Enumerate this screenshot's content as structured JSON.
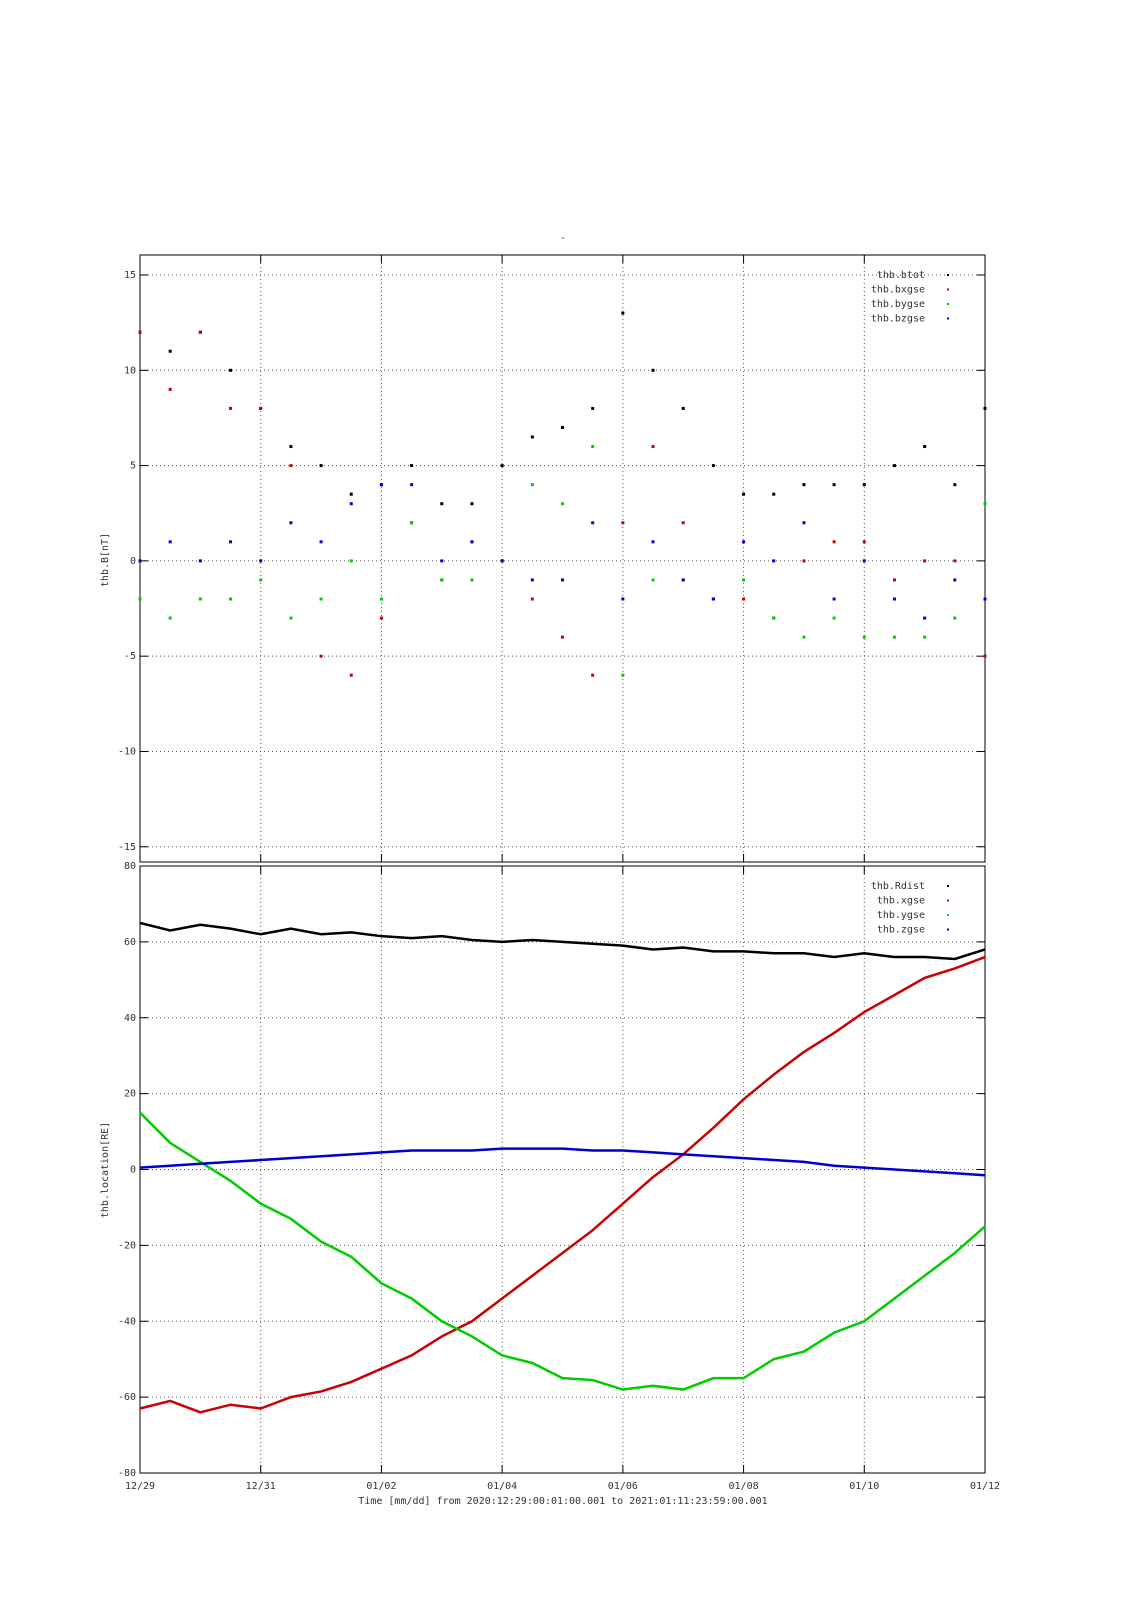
{
  "chart_data": [
    {
      "type": "scatter",
      "title": "-",
      "y_label": "thb.B[nT]",
      "legend": "upper right",
      "grid": true,
      "ylim": [
        -15.8,
        16.05
      ],
      "yticks": [
        15,
        10,
        5,
        0,
        -5,
        -10,
        -15
      ],
      "xlim": [
        0,
        14
      ],
      "x": [
        0,
        0.5,
        1,
        1.5,
        2,
        2.5,
        3,
        3.5,
        4,
        4.5,
        5,
        5.5,
        6,
        6.5,
        7,
        7.5,
        8,
        8.5,
        9,
        9.5,
        10,
        10.5,
        11,
        11.5,
        12,
        12.5,
        13,
        13.5,
        14
      ],
      "series": [
        {
          "name": "thb.btot",
          "color": "#000000",
          "values": [
            12,
            11,
            12,
            10,
            8,
            6,
            5,
            3.5,
            4,
            5,
            3,
            3,
            5,
            6.5,
            7,
            8,
            13,
            10,
            8,
            5,
            3.5,
            3.5,
            4,
            4,
            4,
            5,
            6,
            4,
            8
          ]
        },
        {
          "name": "thb.bxgse",
          "color": "#cc0000",
          "values": [
            12,
            9,
            12,
            8,
            8,
            5,
            -5,
            -6,
            -3,
            2,
            -1,
            1,
            0,
            -2,
            -4,
            -6,
            2,
            6,
            2,
            -2,
            -2,
            -3,
            0,
            1,
            1,
            -1,
            0,
            0,
            -5
          ]
        },
        {
          "name": "thb.bygse",
          "color": "#00cc00",
          "values": [
            -2,
            -3,
            -2,
            -2,
            -1,
            -3,
            -2,
            0,
            -2,
            2,
            -1,
            -1,
            0,
            4,
            3,
            6,
            -6,
            -1,
            -1,
            -2,
            -1,
            -3,
            -4,
            -3,
            -4,
            -4,
            -4,
            -3,
            3
          ]
        },
        {
          "name": "thb.bzgse",
          "color": "#0000cc",
          "values": [
            0,
            1,
            0,
            1,
            0,
            2,
            1,
            3,
            4,
            4,
            0,
            1,
            0,
            -1,
            -1,
            2,
            -2,
            1,
            -1,
            -2,
            1,
            0,
            2,
            -2,
            0,
            -2,
            -3,
            -1,
            -2
          ]
        }
      ]
    },
    {
      "type": "line",
      "y_label": "thb.location[RE]",
      "x_label": "Time [mm/dd]  from 2020:12:29:00:01:00.001  to  2021:01:11:23:59:00.001",
      "legend": "upper right",
      "grid": true,
      "ylim": [
        -80,
        80
      ],
      "yticks": [
        80,
        60,
        40,
        20,
        0,
        -20,
        -40,
        -60,
        -80
      ],
      "xlim": [
        0,
        14
      ],
      "xticks": [
        {
          "value": 0,
          "label": "12/29"
        },
        {
          "value": 2,
          "label": "12/31"
        },
        {
          "value": 4,
          "label": "01/02"
        },
        {
          "value": 6,
          "label": "01/04"
        },
        {
          "value": 8,
          "label": "01/06"
        },
        {
          "value": 10,
          "label": "01/08"
        },
        {
          "value": 12,
          "label": "01/10"
        },
        {
          "value": 14,
          "label": "01/12"
        }
      ],
      "x": [
        0,
        0.5,
        1,
        1.5,
        2,
        2.5,
        3,
        3.5,
        4,
        4.5,
        5,
        5.5,
        6,
        6.5,
        7,
        7.5,
        8,
        8.5,
        9,
        9.5,
        10,
        10.5,
        11,
        11.5,
        12,
        12.5,
        13,
        13.5,
        14
      ],
      "series": [
        {
          "name": "thb.Rdist",
          "color": "#000000",
          "values": [
            65,
            63,
            64.5,
            63.5,
            62,
            63.5,
            62,
            62.5,
            61.5,
            61,
            61.5,
            60.5,
            60,
            60.5,
            60,
            59.5,
            59,
            58,
            58.5,
            57.5,
            57.5,
            57,
            57,
            56,
            57,
            56,
            56,
            55.5,
            58
          ]
        },
        {
          "name": "thb.xgse",
          "color": "#cc0000",
          "values": [
            -63,
            -61,
            -64,
            -62,
            -63,
            -60,
            -58.5,
            -56,
            -52.5,
            -49,
            -44,
            -40,
            -34,
            -28,
            -22,
            -16,
            -9,
            -2,
            4,
            11,
            18.5,
            25,
            31,
            36,
            41.5,
            46,
            50.5,
            53,
            56
          ]
        },
        {
          "name": "thb.ygse",
          "color": "#00cc00",
          "values": [
            15,
            7,
            2,
            -3,
            -9,
            -13,
            -19,
            -23,
            -30,
            -34,
            -40,
            -44,
            -49,
            -51,
            -55,
            -55.5,
            -58,
            -57,
            -58,
            -55,
            -55,
            -50,
            -48,
            -43,
            -40,
            -34,
            -28,
            -22,
            -15
          ]
        },
        {
          "name": "thb.zgse",
          "color": "#0000cc",
          "values": [
            0.5,
            1,
            1.5,
            2,
            2.5,
            3,
            3.5,
            4,
            4.5,
            5,
            5,
            5,
            5.5,
            5.5,
            5.5,
            5,
            5,
            4.5,
            4,
            3.5,
            3,
            2.5,
            2,
            1,
            0.5,
            0,
            -0.5,
            -1,
            -1.5
          ]
        }
      ]
    }
  ]
}
